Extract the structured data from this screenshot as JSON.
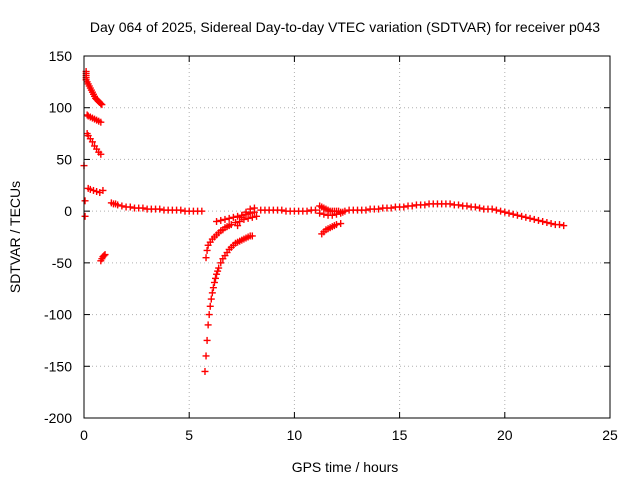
{
  "chart_data": {
    "type": "scatter",
    "title": "Day 064 of 2025, Sidereal Day-to-day VTEC variation (SDTVAR) for receiver p043",
    "xlabel": "GPS time / hours",
    "ylabel": "SDTVAR / TECUs",
    "xlim": [
      0,
      25
    ],
    "ylim": [
      -200,
      150
    ],
    "xticks": [
      "0",
      "5",
      "10",
      "15",
      "20",
      "25"
    ],
    "yticks": [
      "150",
      "100",
      "50",
      "0",
      "-50",
      "-100",
      "-150",
      "-200"
    ],
    "grid": true,
    "marker": "plus",
    "color": "#ff0000",
    "series": [
      {
        "name": "SDTVAR",
        "x": [
          0.0,
          0.05,
          0.05,
          0.1,
          0.1,
          0.1,
          0.1,
          0.1,
          0.15,
          0.2,
          0.25,
          0.3,
          0.35,
          0.4,
          0.45,
          0.5,
          0.55,
          0.6,
          0.65,
          0.7,
          0.75,
          0.8,
          0.85,
          0.15,
          0.2,
          0.3,
          0.4,
          0.5,
          0.6,
          0.7,
          0.8,
          0.15,
          0.2,
          0.3,
          0.4,
          0.5,
          0.6,
          0.7,
          0.8,
          0.2,
          0.3,
          0.45,
          0.6,
          0.75,
          0.9,
          0.8,
          0.85,
          0.9,
          0.95,
          1.0,
          1.3,
          1.4,
          1.5,
          1.6,
          1.8,
          2.0,
          2.2,
          2.4,
          2.6,
          2.8,
          3.0,
          3.2,
          3.4,
          3.6,
          3.8,
          4.0,
          4.2,
          4.4,
          4.6,
          4.8,
          5.0,
          5.2,
          5.4,
          5.6,
          5.75,
          5.8,
          5.85,
          5.9,
          5.95,
          6.0,
          6.05,
          6.1,
          6.15,
          6.2,
          6.25,
          6.3,
          6.35,
          6.4,
          6.5,
          6.6,
          6.7,
          6.8,
          6.9,
          7.0,
          7.1,
          7.2,
          7.3,
          7.4,
          7.5,
          7.6,
          7.7,
          7.8,
          7.9,
          8.0,
          5.8,
          5.85,
          5.9,
          6.0,
          6.1,
          6.2,
          6.3,
          6.4,
          6.5,
          6.6,
          6.7,
          6.8,
          6.9,
          7.0,
          7.2,
          7.4,
          7.6,
          7.8,
          8.0,
          8.2,
          6.3,
          6.5,
          6.7,
          6.9,
          7.1,
          7.3,
          7.5,
          7.7,
          7.9,
          8.1,
          7.3,
          7.5,
          7.7,
          7.9,
          8.1,
          8.4,
          8.6,
          8.8,
          9.0,
          9.2,
          9.4,
          9.6,
          9.8,
          10.0,
          10.2,
          10.4,
          10.6,
          10.8,
          11.0,
          11.2,
          11.3,
          11.4,
          11.5,
          11.6,
          11.7,
          11.8,
          11.9,
          12.0,
          12.1,
          12.2,
          12.3,
          11.3,
          11.4,
          11.5,
          11.6,
          11.7,
          11.8,
          11.9,
          12.0,
          12.2,
          11.2,
          11.4,
          11.6,
          11.8,
          12.0,
          12.2,
          12.4,
          12.6,
          12.8,
          13.0,
          13.2,
          13.4,
          13.6,
          13.8,
          14.0,
          14.2,
          14.4,
          14.6,
          14.8,
          15.0,
          15.2,
          15.4,
          15.6,
          15.8,
          16.0,
          16.2,
          16.4,
          16.6,
          16.8,
          17.0,
          17.2,
          17.4,
          17.6,
          17.8,
          18.0,
          18.2,
          18.4,
          18.6,
          18.8,
          19.0,
          19.2,
          19.4,
          19.6,
          19.8,
          20.0,
          20.2,
          20.4,
          20.6,
          20.8,
          21.0,
          21.2,
          21.4,
          21.6,
          21.8,
          22.0,
          22.2,
          22.4,
          22.6,
          22.8
        ],
        "y": [
          44,
          -5,
          10,
          135,
          133,
          131,
          129,
          127,
          125,
          123,
          121,
          119,
          117,
          115,
          113,
          111,
          109,
          108,
          107,
          106,
          105,
          104,
          103,
          93,
          92,
          91,
          90,
          89,
          88,
          87,
          86,
          75,
          73,
          70,
          67,
          63,
          60,
          57,
          55,
          22,
          21,
          20,
          19,
          18,
          20,
          -48,
          -46,
          -44,
          -43,
          -42,
          8,
          7,
          7,
          6,
          5,
          4,
          4,
          3,
          3,
          3,
          2,
          2,
          2,
          2,
          1,
          1,
          1,
          1,
          1,
          0,
          0,
          0,
          0,
          0,
          -155,
          -140,
          -125,
          -110,
          -100,
          -92,
          -85,
          -79,
          -74,
          -69,
          -65,
          -61,
          -58,
          -55,
          -50,
          -46,
          -43,
          -40,
          -37,
          -35,
          -33,
          -31,
          -30,
          -29,
          -28,
          -27,
          -26,
          -25,
          -24,
          -24,
          -45,
          -38,
          -33,
          -30,
          -27,
          -25,
          -23,
          -21,
          -19,
          -18,
          -16,
          -15,
          -14,
          -13,
          -11,
          -10,
          -8,
          -7,
          -6,
          -5,
          -10,
          -9,
          -8,
          -7,
          -6,
          -5,
          -4,
          -3,
          -2,
          -1,
          -14,
          -6,
          -1,
          2,
          3,
          1,
          1,
          1,
          1,
          1,
          1,
          0,
          0,
          0,
          0,
          0,
          0,
          1,
          1,
          5,
          4,
          3,
          2,
          1,
          0,
          0,
          0,
          0,
          0,
          -1,
          -1,
          -22,
          -20,
          -18,
          -17,
          -16,
          -15,
          -14,
          -13,
          -12,
          -2,
          -3,
          -4,
          -4,
          -3,
          -2,
          0,
          1,
          1,
          1,
          1,
          1,
          2,
          2,
          2,
          3,
          3,
          3,
          4,
          4,
          4,
          5,
          5,
          6,
          6,
          6,
          7,
          7,
          7,
          7,
          7,
          7,
          6,
          6,
          5,
          5,
          4,
          4,
          3,
          2,
          2,
          2,
          1,
          0,
          -1,
          -2,
          -3,
          -4,
          -5,
          -6,
          -7,
          -8,
          -9,
          -10,
          -11,
          -12,
          -13,
          -13,
          -14
        ]
      }
    ]
  }
}
